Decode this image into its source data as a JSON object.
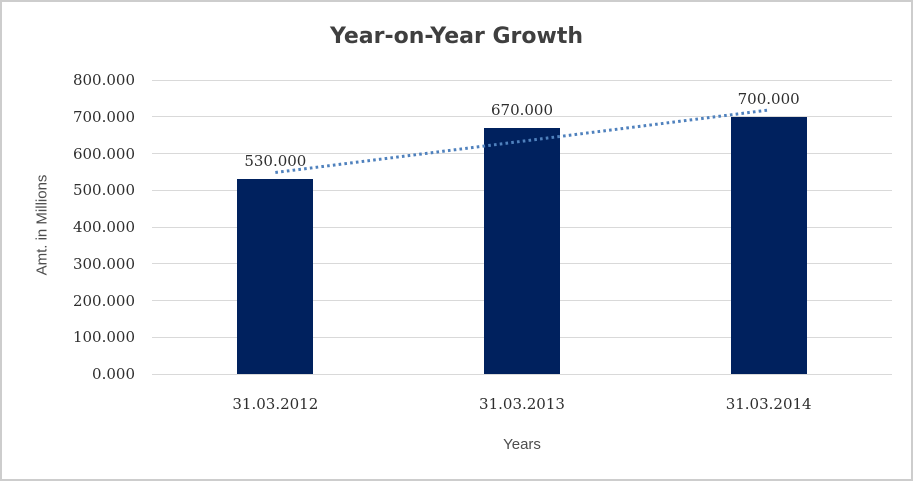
{
  "chart_data": {
    "type": "bar",
    "title": "Year-on-Year Growth",
    "xlabel": "Years",
    "ylabel": "Amt. in Millions",
    "categories": [
      "31.03.2012",
      "31.03.2013",
      "31.03.2014"
    ],
    "values": [
      530,
      670,
      700
    ],
    "value_labels": [
      "530.000",
      "670.000",
      "700.000"
    ],
    "y_ticks": [
      "800.000",
      "700.000",
      "600.000",
      "500.000",
      "400.000",
      "300.000",
      "200.000",
      "100.000",
      "0.000"
    ],
    "ylim": [
      0,
      800
    ],
    "grid": "horizontal",
    "legend": "none",
    "trendline": {
      "type": "linear",
      "style": "dotted",
      "fitted_values": [
        548.3,
        718.3
      ]
    },
    "colors": {
      "bar": "#00215e",
      "trendline": "#4f81bd",
      "gridline": "#d9d9d9",
      "title": "#3f3f3f",
      "axis_title": "#4d4d4d",
      "tick_label": "#2e2e2e",
      "frame_border": "#cdcdcd"
    }
  }
}
